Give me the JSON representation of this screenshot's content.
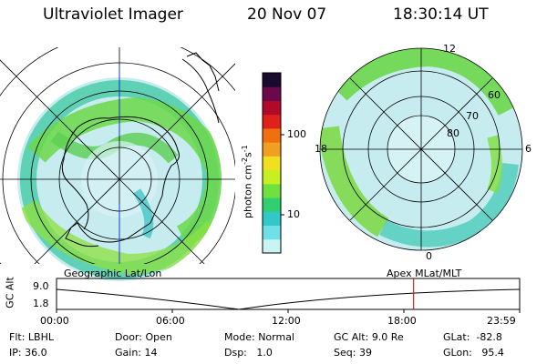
{
  "header": {
    "instrument": "Ultraviolet Imager",
    "date": "20 Nov 07",
    "time": "18:30:14 UT"
  },
  "geo_map": {
    "label": "Geographic Lat/Lon"
  },
  "apex_map": {
    "label": "Apex MLat/MLT",
    "mlt_labels": {
      "top": "12",
      "left": "18",
      "right": "6",
      "bottom": "0"
    },
    "lat_labels": [
      "60",
      "70",
      "80"
    ]
  },
  "colorbar": {
    "unit_label": "photon cm",
    "unit_exp1": "-2",
    "unit_mid": "s",
    "unit_exp2": "-1",
    "ticks": [
      "100",
      "10"
    ],
    "colors": [
      "#1a0a2e",
      "#6a0a4a",
      "#b00a2a",
      "#e0201a",
      "#f07010",
      "#f0a020",
      "#f0e020",
      "#c8f020",
      "#70e040",
      "#30d070",
      "#30c8c8",
      "#70e0e8",
      "#c8f4f4"
    ]
  },
  "timeline": {
    "ylabel": "GC Alt",
    "yticks": [
      "9.0",
      "1.8"
    ],
    "xticks": [
      "00:00",
      "06:00",
      "12:00",
      "18:00",
      "23:59"
    ],
    "current_fraction": 0.771,
    "marker_color": "#d02020"
  },
  "info": {
    "flt_label": "Flt:",
    "flt_value": "LBHL",
    "ip_label": "IP:",
    "ip_value": "36.0",
    "door_label": "Door:",
    "door_value": "Open",
    "gain_label": "Gain:",
    "gain_value": "14",
    "mode_label": "Mode:",
    "mode_value": "Normal",
    "dsp_label": "Dsp:",
    "dsp_value": "1.0",
    "gcalt_label": "GC Alt:",
    "gcalt_value": "9.0 Re",
    "seq_label": "Seq:",
    "seq_value": "39",
    "glat_label": "GLat:",
    "glat_value": "-82.8",
    "glon_label": "GLon:",
    "glon_value": "95.4"
  }
}
